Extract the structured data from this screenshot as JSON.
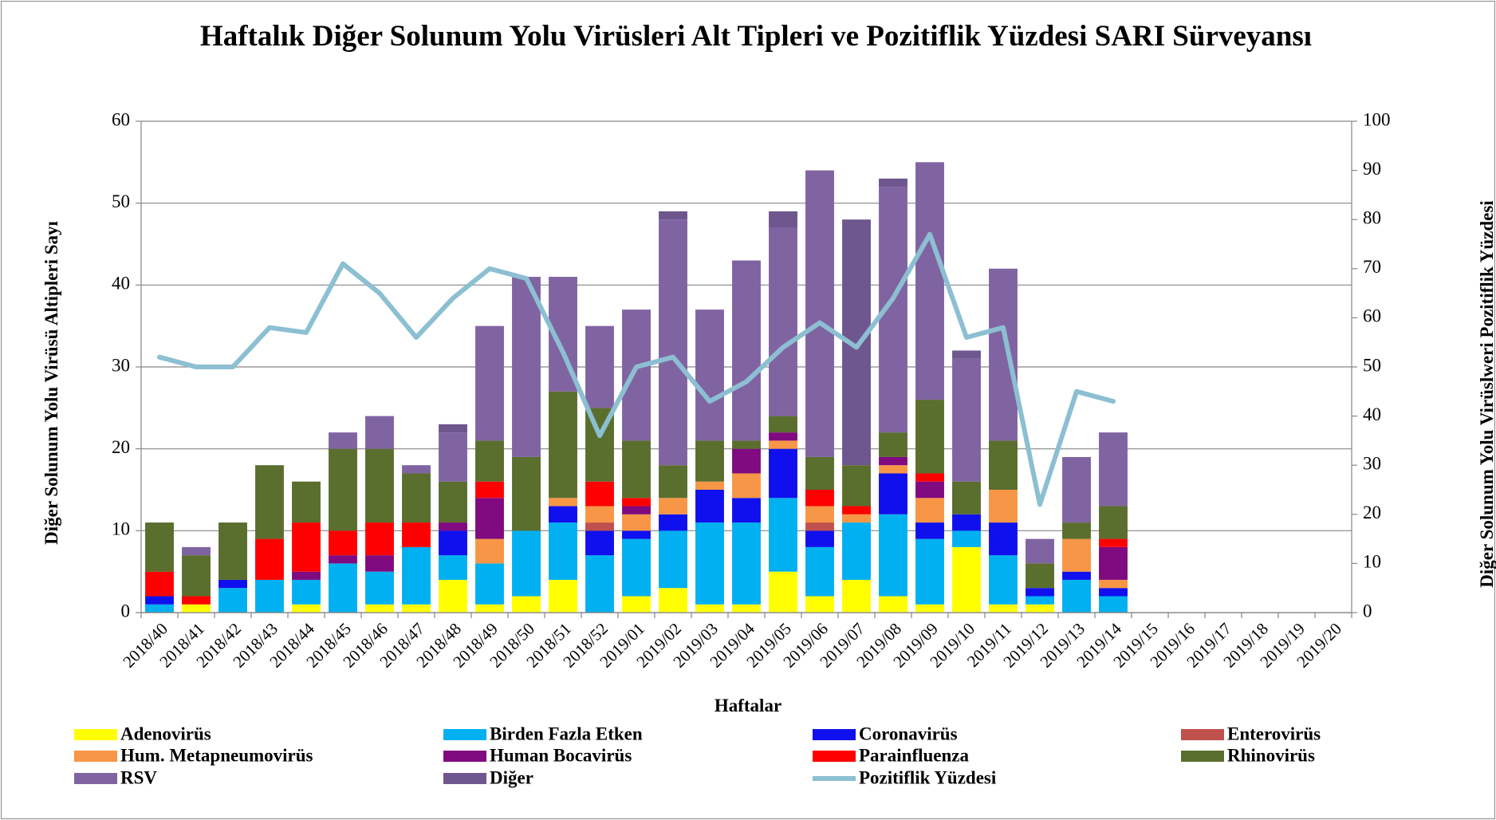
{
  "chart_data": {
    "type": "bar",
    "stacked": true,
    "title": "Haftalık Diğer Solunum Yolu Virüsleri Alt Tipleri ve Pozitiflik Yüzdesi SARI Sürveyansı",
    "x_label": "Haftalar",
    "y_label": "Diğer Solunum Yolu Virüsü Altipleri Sayı",
    "y2_label": "Diğer Solunum Yolu Virüslweri Pozitiflik Yüzdesi",
    "categories": [
      "2018/40",
      "2018/41",
      "2018/42",
      "2018/43",
      "2018/44",
      "2018/45",
      "2018/46",
      "2018/47",
      "2018/48",
      "2018/49",
      "2018/50",
      "2018/51",
      "2018/52",
      "2019/01",
      "2019/02",
      "2019/03",
      "2019/04",
      "2019/05",
      "2019/06",
      "2019/07",
      "2019/08",
      "2019/09",
      "2019/10",
      "2019/11",
      "2019/12",
      "2019/13",
      "2019/14",
      "2019/15",
      "2019/16",
      "2019/17",
      "2019/18",
      "2019/19",
      "2019/20"
    ],
    "ylim": [
      0,
      60
    ],
    "yticks": [
      0,
      10,
      20,
      30,
      40,
      50,
      60
    ],
    "y2lim": [
      0,
      100
    ],
    "y2ticks": [
      0,
      10,
      20,
      30,
      40,
      50,
      60,
      70,
      80,
      90,
      100
    ],
    "grid": true,
    "legend": "bottom",
    "series": [
      {
        "name": "Adenovirüs",
        "color": "#ffff00",
        "values": [
          0,
          1,
          0,
          0,
          1,
          0,
          1,
          1,
          4,
          1,
          2,
          4,
          0,
          2,
          3,
          1,
          1,
          5,
          2,
          4,
          2,
          1,
          8,
          1,
          1,
          0,
          0,
          null,
          null,
          null,
          null,
          null,
          null
        ]
      },
      {
        "name": "Birden Fazla Etken",
        "color": "#00b0f0",
        "values": [
          1,
          0,
          3,
          4,
          3,
          6,
          4,
          7,
          3,
          5,
          8,
          7,
          7,
          7,
          7,
          10,
          10,
          9,
          6,
          7,
          10,
          8,
          2,
          6,
          1,
          4,
          2,
          null,
          null,
          null,
          null,
          null,
          null
        ]
      },
      {
        "name": "Coronavirüs",
        "color": "#1010ee",
        "values": [
          1,
          0,
          1,
          0,
          0,
          0,
          0,
          0,
          3,
          0,
          0,
          2,
          3,
          1,
          2,
          4,
          3,
          6,
          2,
          0,
          5,
          2,
          2,
          4,
          1,
          1,
          1,
          null,
          null,
          null,
          null,
          null,
          null
        ]
      },
      {
        "name": "Enterovirüs",
        "color": "#c0504d",
        "values": [
          0,
          0,
          0,
          0,
          0,
          0,
          0,
          0,
          0,
          0,
          0,
          0,
          1,
          0,
          0,
          0,
          0,
          0,
          1,
          0,
          0,
          0,
          0,
          0,
          0,
          0,
          0,
          null,
          null,
          null,
          null,
          null,
          null
        ]
      },
      {
        "name": "Hum. Metapneumovirüs",
        "color": "#f79646",
        "values": [
          0,
          0,
          0,
          0,
          0,
          0,
          0,
          0,
          0,
          3,
          0,
          1,
          2,
          2,
          2,
          1,
          3,
          1,
          2,
          1,
          1,
          3,
          0,
          4,
          0,
          4,
          1,
          null,
          null,
          null,
          null,
          null,
          null
        ]
      },
      {
        "name": "Human Bocavirüs",
        "color": "#800a80",
        "values": [
          0,
          0,
          0,
          0,
          1,
          1,
          2,
          0,
          1,
          5,
          0,
          0,
          0,
          1,
          0,
          0,
          3,
          1,
          0,
          0,
          1,
          2,
          0,
          0,
          0,
          0,
          4,
          null,
          null,
          null,
          null,
          null,
          null
        ]
      },
      {
        "name": "Parainfluenza",
        "color": "#ff0000",
        "values": [
          3,
          1,
          0,
          5,
          6,
          3,
          4,
          3,
          0,
          2,
          0,
          0,
          3,
          1,
          0,
          0,
          0,
          0,
          2,
          1,
          0,
          1,
          0,
          0,
          0,
          0,
          1,
          null,
          null,
          null,
          null,
          null,
          null
        ]
      },
      {
        "name": "Rhinovirüs",
        "color": "#5a6e2e",
        "values": [
          6,
          5,
          7,
          9,
          5,
          10,
          9,
          6,
          5,
          5,
          9,
          13,
          9,
          7,
          4,
          5,
          1,
          2,
          4,
          5,
          3,
          9,
          4,
          6,
          3,
          2,
          4,
          null,
          null,
          null,
          null,
          null,
          null
        ]
      },
      {
        "name": "RSV",
        "color": "#8064a2",
        "values": [
          0,
          1,
          0,
          0,
          0,
          2,
          4,
          1,
          6,
          14,
          22,
          14,
          10,
          16,
          30,
          16,
          22,
          23,
          35,
          0,
          30,
          29,
          15,
          21,
          3,
          8,
          9,
          null,
          null,
          null,
          null,
          null,
          null
        ]
      },
      {
        "name": "Diğer",
        "color": "#6e568e",
        "values": [
          0,
          0,
          0,
          0,
          0,
          0,
          0,
          0,
          1,
          0,
          0,
          0,
          0,
          0,
          1,
          0,
          0,
          2,
          0,
          30,
          1,
          0,
          1,
          0,
          0,
          0,
          0,
          null,
          null,
          null,
          null,
          null,
          null
        ]
      },
      {
        "name": "Pozitiflik Yüzdesi",
        "color": "#8cbfd2",
        "type": "line",
        "axis": "y2",
        "values": [
          52,
          50,
          50,
          58,
          57,
          71,
          65,
          56,
          64,
          70,
          68,
          53,
          36,
          50,
          52,
          43,
          47,
          54,
          59,
          54,
          64,
          77,
          56,
          58,
          22,
          45,
          43,
          null,
          null,
          null,
          null,
          null,
          null
        ]
      }
    ]
  }
}
